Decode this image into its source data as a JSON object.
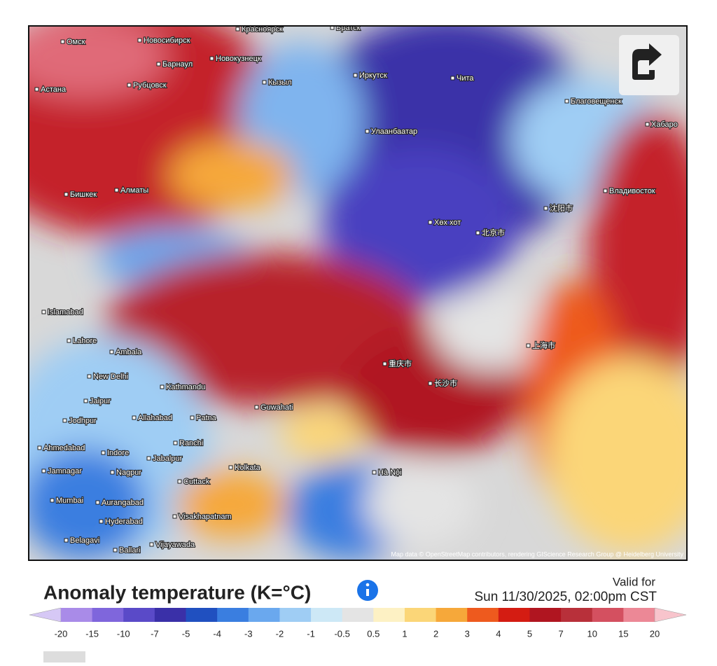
{
  "map": {
    "cities": [
      "Омск",
      "Новосибирск",
      "Красноярск",
      "Братск",
      "Барнаул",
      "Новокузнецк",
      "Астана",
      "Рубцовск",
      "Кызыл",
      "Иркутск",
      "Чита",
      "Благовещенск",
      "Улаанбаатар",
      "Хабаро",
      "Бишкек",
      "Алматы",
      "Владивосток",
      "Хөх хот",
      "Islamabad",
      "Lahore",
      "Ambala",
      "New Delhi",
      "Kathmandu",
      "Guwahati",
      "Jaipur",
      "Jodhpur",
      "Allahabad",
      "Patna",
      "Ahmedabad",
      "Indore",
      "Ranchi",
      "Jamnagar",
      "Nagpur",
      "Jabalpur",
      "Cuttack",
      "Kolkata",
      "Mumbai",
      "Aurangabad",
      "Hyderabad",
      "Visakhapatnam",
      "Belagavi",
      "Vijayawada",
      "Ballari",
      "Hà Nội",
      "北京市",
      "沈阳市",
      "重庆市",
      "长沙市",
      "上海市"
    ],
    "attribution": "Map data © OpenStreetMap contributors, rendering GIScience Research Group @ Heidelberg University"
  },
  "legend": {
    "title": "Anomaly temperature (K=°C)",
    "valid_label": "Valid for",
    "valid_time": "Sun 11/30/2025, 02:00pm CST",
    "labels": [
      -20,
      -15,
      -10,
      -7,
      -5,
      -4,
      -3,
      -2,
      -1,
      -0.5,
      0.5,
      1,
      2,
      3,
      4,
      5,
      7,
      10,
      15,
      20
    ],
    "colors": [
      "#d6c8f5",
      "#a98be8",
      "#7f66dc",
      "#5a4ac8",
      "#3a30a8",
      "#2050c0",
      "#3a7ee0",
      "#6aa8ee",
      "#9fcdf4",
      "#cde8f6",
      "#e4e4e4",
      "#fdf1c4",
      "#fbd678",
      "#f6a83a",
      "#ee5a1e",
      "#d41c12",
      "#b01520",
      "#b8303a",
      "#d45060",
      "#ec8896",
      "#f8c4cc"
    ]
  }
}
